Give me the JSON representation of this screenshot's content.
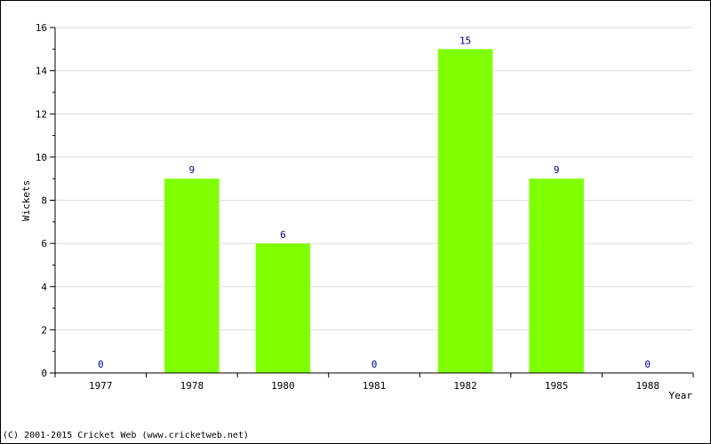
{
  "chart_data": {
    "type": "bar",
    "categories": [
      "1977",
      "1978",
      "1980",
      "1981",
      "1982",
      "1985",
      "1988"
    ],
    "values": [
      0,
      9,
      6,
      0,
      15,
      9,
      0
    ],
    "xlabel": "Year",
    "ylabel": "Wickets",
    "ylim": [
      0,
      16
    ],
    "yticks": [
      0,
      2,
      4,
      6,
      8,
      10,
      12,
      14,
      16
    ],
    "grid": true,
    "bar_color": "#80ff00",
    "label_color": "#00008b"
  },
  "footer": {
    "copyright": "(C) 2001-2015 Cricket Web (www.cricketweb.net)"
  }
}
